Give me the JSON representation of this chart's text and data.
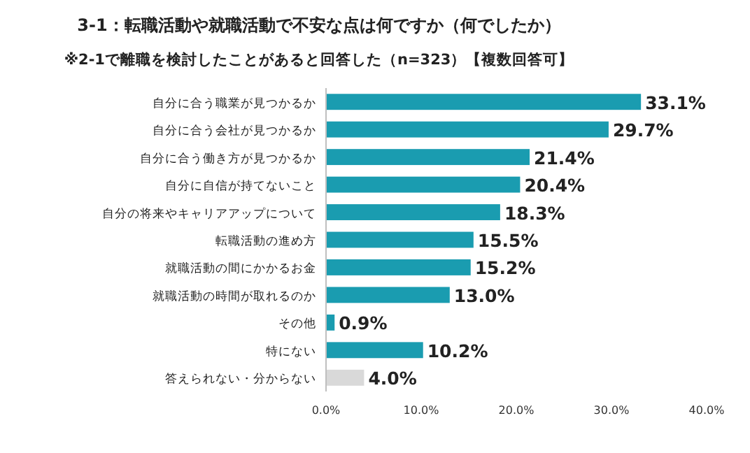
{
  "chart_data": {
    "type": "bar",
    "orientation": "horizontal",
    "title": "3-1：転職活動や就職活動で不安な点は何ですか（何でしたか）",
    "subtitle": "※2-1で離職を検討したことがあると回答した（n=323）【複数回答可】",
    "categories": [
      "自分に合う職業が見つかるか",
      "自分に合う会社が見つかるか",
      "自分に合う働き方が見つかるか",
      "自分に自信が持てないこと",
      "自分の将来やキャリアアップについて",
      "転職活動の進め方",
      "就職活動の間にかかるお金",
      "就職活動の時間が取れるのか",
      "その他",
      "特にない",
      "答えられない・分からない"
    ],
    "values": [
      33.1,
      29.7,
      21.4,
      20.4,
      18.3,
      15.5,
      15.2,
      13.0,
      0.9,
      10.2,
      4.0
    ],
    "value_labels": [
      "33.1%",
      "29.7%",
      "21.4%",
      "20.4%",
      "18.3%",
      "15.5%",
      "15.2%",
      "13.0%",
      "0.9%",
      "10.2%",
      "4.0%"
    ],
    "colors": [
      "#1a9cb0",
      "#1a9cb0",
      "#1a9cb0",
      "#1a9cb0",
      "#1a9cb0",
      "#1a9cb0",
      "#1a9cb0",
      "#1a9cb0",
      "#1a9cb0",
      "#1a9cb0",
      "#d9d9d9"
    ],
    "xlim": [
      0,
      40
    ],
    "xticks": [
      {
        "value": 0,
        "label": "0.0%"
      },
      {
        "value": 10,
        "label": "10.0%"
      },
      {
        "value": 20,
        "label": "20.0%"
      },
      {
        "value": 30,
        "label": "30.0%"
      },
      {
        "value": 40,
        "label": "40.0%"
      }
    ]
  }
}
